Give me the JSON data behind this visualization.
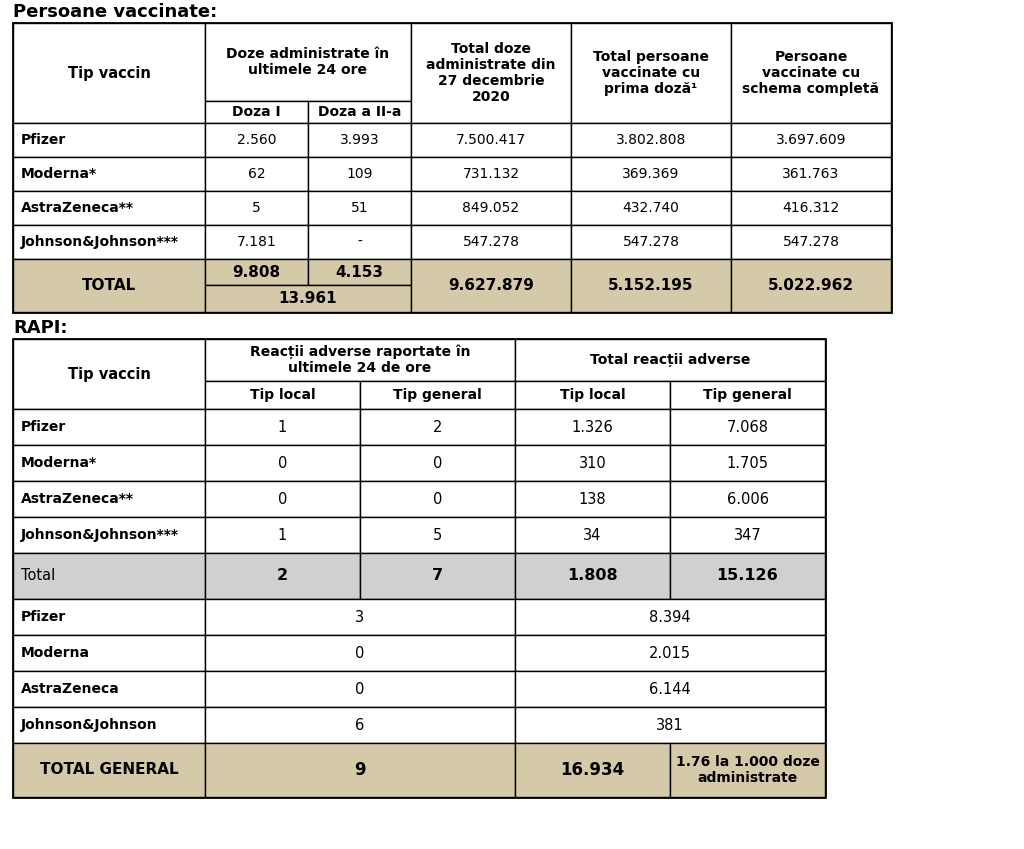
{
  "title1": "Persoane vaccinate:",
  "title2": "RAPI:",
  "bg_color": "#ffffff",
  "tan_color": "#d4c9a8",
  "light_gray": "#d0d0d0",
  "table1": {
    "rows": [
      [
        "Pfizer",
        "2.560",
        "3.993",
        "7.500.417",
        "3.802.808",
        "3.697.609"
      ],
      [
        "Moderna*",
        "62",
        "109",
        "731.132",
        "369.369",
        "361.763"
      ],
      [
        "AstraZeneca**",
        "5",
        "51",
        "849.052",
        "432.740",
        "416.312"
      ],
      [
        "Johnson&Johnson***",
        "7.181",
        "-",
        "547.278",
        "547.278",
        "547.278"
      ]
    ],
    "total": {
      "label": "TOTAL",
      "d1": "9.808",
      "d2": "4.153",
      "combined": "13.961",
      "total_doze": "9.627.879",
      "prima_doza": "5.152.195",
      "schema": "5.022.962"
    }
  },
  "table2": {
    "rows": [
      [
        "Pfizer",
        "1",
        "2",
        "1.326",
        "7.068"
      ],
      [
        "Moderna*",
        "0",
        "0",
        "310",
        "1.705"
      ],
      [
        "AstraZeneca**",
        "0",
        "0",
        "138",
        "6.006"
      ],
      [
        "Johnson&Johnson***",
        "1",
        "5",
        "34",
        "347"
      ]
    ],
    "total": {
      "label": "Total",
      "tl_24": "2",
      "tg_24": "7",
      "tl_tot": "1.808",
      "tg_tot": "15.126"
    },
    "rows2": [
      [
        "Pfizer",
        "3",
        "8.394"
      ],
      [
        "Moderna",
        "0",
        "2.015"
      ],
      [
        "AstraZeneca",
        "0",
        "6.144"
      ],
      [
        "Johnson&Johnson",
        "6",
        "381"
      ]
    ],
    "total_general": {
      "label": "TOTAL GENERAL",
      "val24": "9",
      "tl_tot": "16.934",
      "tg_tot": "1.76 la 1.000 doze\nadministrate"
    }
  }
}
